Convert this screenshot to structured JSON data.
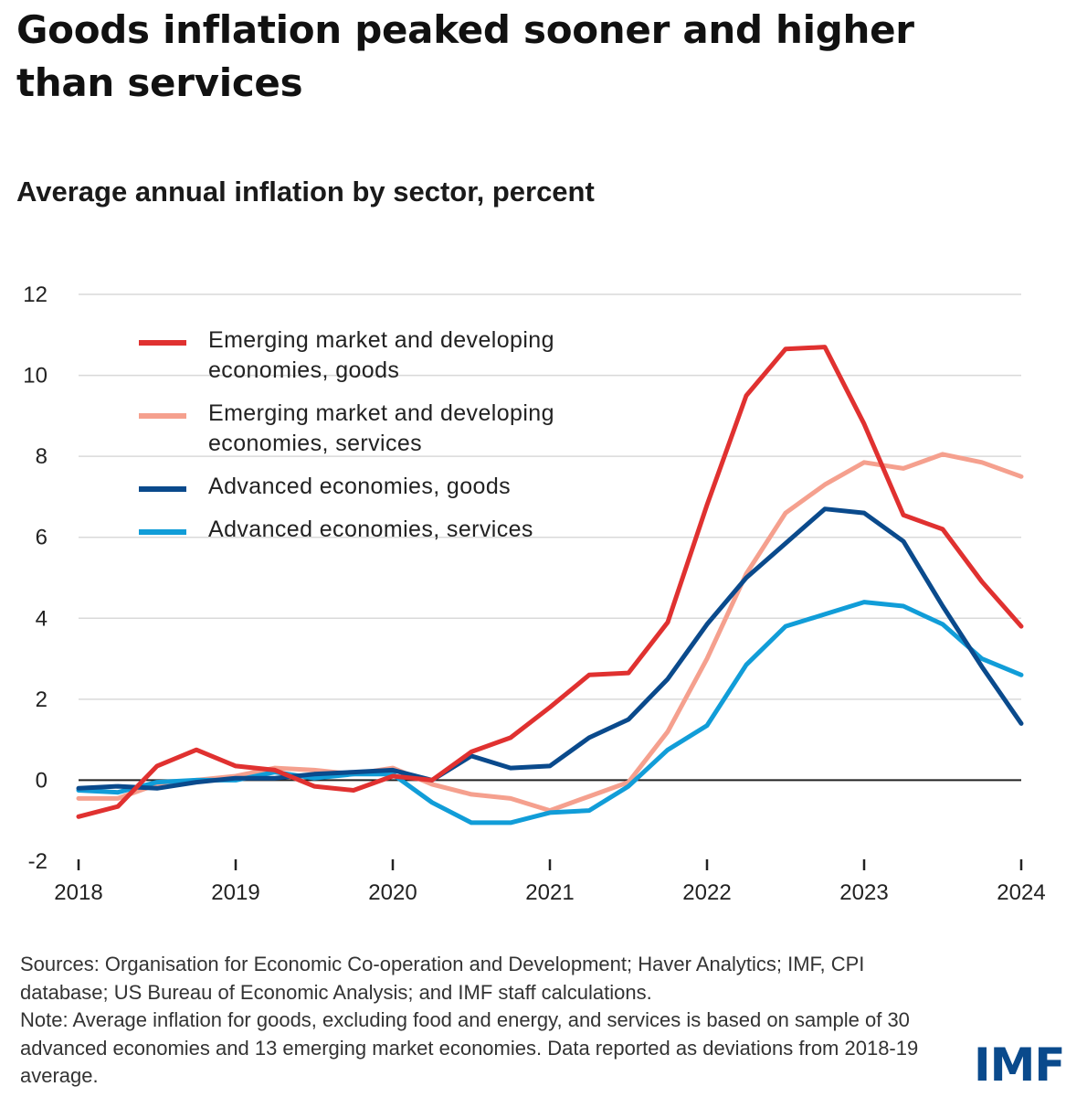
{
  "header": {
    "title": "Goods inflation peaked sooner and higher than services",
    "subtitle": "Average annual inflation by sector, percent"
  },
  "chart_data": {
    "type": "line",
    "title": "Goods inflation peaked sooner and higher than services",
    "subtitle": "Average annual inflation by sector, percent",
    "xlabel": "",
    "ylabel": "",
    "x": [
      2018.0,
      2018.25,
      2018.5,
      2018.75,
      2019.0,
      2019.25,
      2019.5,
      2019.75,
      2020.0,
      2020.25,
      2020.5,
      2020.75,
      2021.0,
      2021.25,
      2021.5,
      2021.75,
      2022.0,
      2022.25,
      2022.5,
      2022.75,
      2023.0,
      2023.25,
      2023.5,
      2023.75,
      2024.0
    ],
    "x_ticks": [
      2018,
      2019,
      2020,
      2021,
      2022,
      2023,
      2024
    ],
    "x_tick_labels": [
      "2018",
      "2019",
      "2020",
      "2021",
      "2022",
      "2023",
      "2024"
    ],
    "xlim": [
      2018,
      2024
    ],
    "y_ticks": [
      -2,
      0,
      2,
      4,
      6,
      8,
      10,
      12
    ],
    "y_tick_labels": [
      "-2",
      "0",
      "2",
      "4",
      "6",
      "8",
      "10",
      "12"
    ],
    "ylim": [
      -2,
      12
    ],
    "grid": true,
    "legend_position": "top-left",
    "series": [
      {
        "name": "Emerging market and developing economies, goods",
        "label_lines": [
          "Emerging market and developing",
          "economies, goods"
        ],
        "color": "#e03130",
        "values": [
          -0.9,
          -0.65,
          0.35,
          0.75,
          0.35,
          0.25,
          -0.15,
          -0.25,
          0.1,
          0.0,
          0.7,
          1.05,
          1.8,
          2.6,
          2.65,
          3.9,
          6.8,
          9.5,
          10.65,
          10.7,
          8.8,
          6.55,
          6.2,
          4.9,
          3.8
        ]
      },
      {
        "name": "Emerging market and developing economies, services",
        "label_lines": [
          "Emerging market and developing",
          "economies, services"
        ],
        "color": "#f5a08e",
        "values": [
          -0.45,
          -0.45,
          -0.1,
          0.0,
          0.1,
          0.3,
          0.25,
          0.15,
          0.3,
          -0.1,
          -0.35,
          -0.45,
          -0.75,
          -0.4,
          -0.05,
          1.2,
          3.0,
          5.1,
          6.6,
          7.3,
          7.85,
          7.7,
          8.05,
          7.85,
          7.5
        ]
      },
      {
        "name": "Advanced economies, goods",
        "label_lines": [
          "Advanced economies, goods"
        ],
        "color": "#0a4a8c",
        "values": [
          -0.2,
          -0.15,
          -0.2,
          -0.05,
          0.05,
          0.05,
          0.15,
          0.2,
          0.25,
          0.0,
          0.6,
          0.3,
          0.35,
          1.05,
          1.5,
          2.5,
          3.85,
          5.0,
          5.85,
          6.7,
          6.6,
          5.9,
          4.3,
          2.8,
          1.4
        ]
      },
      {
        "name": "Advanced economies, services",
        "label_lines": [
          "Advanced economies, services"
        ],
        "color": "#119dd8",
        "values": [
          -0.25,
          -0.3,
          -0.05,
          0.0,
          0.0,
          0.2,
          0.05,
          0.15,
          0.15,
          -0.55,
          -1.05,
          -1.05,
          -0.8,
          -0.75,
          -0.15,
          0.75,
          1.35,
          2.85,
          3.8,
          4.1,
          4.4,
          4.3,
          3.85,
          3.0,
          2.6
        ]
      }
    ]
  },
  "footer": {
    "sources": "Sources: Organisation for Economic Co-operation and Development; Haver Analytics; IMF, CPI database; US Bureau of Economic Analysis; and IMF staff calculations.",
    "note": "Note: Average inflation for goods, excluding food and energy, and services is based on sample of 30 advanced economies and 13 emerging market economies. Data reported as deviations from 2018-19 average.",
    "logo_text": "IMF",
    "logo_color": "#0a4a8c"
  }
}
